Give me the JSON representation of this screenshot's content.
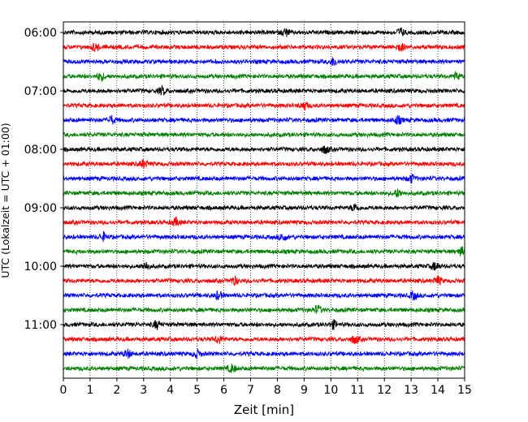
{
  "chart_data": {
    "type": "line",
    "title": "",
    "xlabel": "Zeit  [min]",
    "ylabel": "UTC (Lokalzeit = UTC + 01:00)",
    "xlim": [
      0,
      15
    ],
    "x_ticks": [
      0,
      1,
      2,
      3,
      4,
      5,
      6,
      7,
      8,
      9,
      10,
      11,
      12,
      13,
      14,
      15
    ],
    "x_tick_labels": [
      "0",
      "1",
      "2",
      "3",
      "4",
      "5",
      "6",
      "7",
      "8",
      "9",
      "10",
      "11",
      "12",
      "13",
      "14",
      "15"
    ],
    "y_tick_labels": [
      "06:00",
      "07:00",
      "08:00",
      "09:00",
      "10:00",
      "11:00"
    ],
    "x_grid": true,
    "x_grid_style": "dotted",
    "series_colors": [
      "#000000",
      "#ff0000",
      "#0000ff",
      "#008000"
    ],
    "series": [
      {
        "start": "06:00",
        "color": "#000000",
        "bursts": [
          8.3,
          12.6
        ]
      },
      {
        "start": "06:15",
        "color": "#ff0000",
        "bursts": [
          1.2,
          12.6
        ]
      },
      {
        "start": "06:30",
        "color": "#0000ff",
        "bursts": [
          10.1
        ]
      },
      {
        "start": "06:45",
        "color": "#008000",
        "bursts": [
          1.4,
          14.7
        ]
      },
      {
        "start": "07:00",
        "color": "#000000",
        "bursts": [
          3.7
        ]
      },
      {
        "start": "07:15",
        "color": "#ff0000",
        "bursts": [
          9.0
        ]
      },
      {
        "start": "07:30",
        "color": "#0000ff",
        "bursts": [
          1.8,
          12.5
        ]
      },
      {
        "start": "07:45",
        "color": "#008000",
        "bursts": []
      },
      {
        "start": "08:00",
        "color": "#000000",
        "bursts": [
          9.8
        ]
      },
      {
        "start": "08:15",
        "color": "#ff0000",
        "bursts": [
          3.0
        ]
      },
      {
        "start": "08:30",
        "color": "#0000ff",
        "bursts": [
          13.0
        ]
      },
      {
        "start": "08:45",
        "color": "#008000",
        "bursts": [
          12.5
        ]
      },
      {
        "start": "09:00",
        "color": "#000000",
        "bursts": [
          10.9
        ]
      },
      {
        "start": "09:15",
        "color": "#ff0000",
        "bursts": [
          4.2
        ]
      },
      {
        "start": "09:30",
        "color": "#0000ff",
        "bursts": [
          1.5,
          8.2
        ]
      },
      {
        "start": "09:45",
        "color": "#008000",
        "bursts": [
          14.9
        ]
      },
      {
        "start": "10:00",
        "color": "#000000",
        "bursts": [
          3.1,
          13.9
        ]
      },
      {
        "start": "10:15",
        "color": "#ff0000",
        "bursts": [
          6.4,
          14.0
        ]
      },
      {
        "start": "10:30",
        "color": "#0000ff",
        "bursts": [
          5.8,
          13.1
        ]
      },
      {
        "start": "10:45",
        "color": "#008000",
        "bursts": [
          9.5
        ]
      },
      {
        "start": "11:00",
        "color": "#000000",
        "bursts": [
          3.5,
          10.1
        ]
      },
      {
        "start": "11:15",
        "color": "#ff0000",
        "bursts": [
          5.8,
          10.9
        ]
      },
      {
        "start": "11:30",
        "color": "#0000ff",
        "bursts": [
          2.4,
          5.0
        ]
      },
      {
        "start": "11:45",
        "color": "#008000",
        "bursts": [
          6.3
        ]
      }
    ]
  }
}
